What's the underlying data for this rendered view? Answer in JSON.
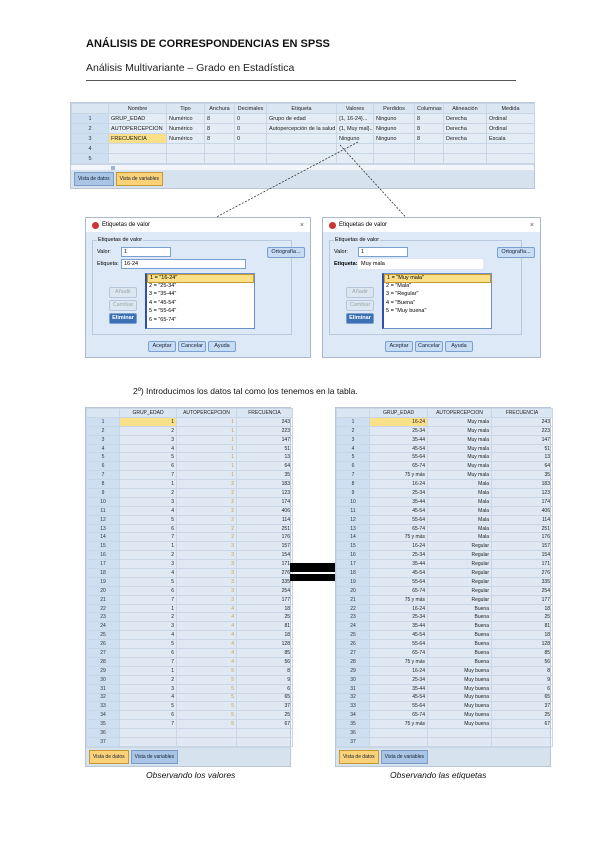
{
  "title": "ANÁLISIS DE CORRESPONDENCIAS EN SPSS",
  "subtitle": "Análisis Multivariante – Grado en Estadística",
  "variable_view": {
    "headers": [
      "",
      "Nombre",
      "Tipo",
      "Anchura",
      "Decimales",
      "Etiqueta",
      "Valores",
      "Perdidos",
      "Columnas",
      "Alineación",
      "Medida"
    ],
    "rows": [
      [
        "1",
        "GRUP_EDAD",
        "Numérico",
        "8",
        "0",
        "Grupo de edad",
        "{1, 16-24}...",
        "Ninguno",
        "8",
        "Derecha",
        "Ordinal"
      ],
      [
        "2",
        "AUTOPERCEPCION",
        "Numérico",
        "8",
        "0",
        "Autopercepción de la salud",
        "{1, Muy mal}...",
        "Ninguno",
        "8",
        "Derecha",
        "Ordinal"
      ],
      [
        "3",
        "FRECUENCIA",
        "Numérico",
        "8",
        "0",
        "",
        "Ninguno",
        "Ninguno",
        "8",
        "Derecha",
        "Escala"
      ],
      [
        "4",
        "",
        "",
        "",
        "",
        "",
        "",
        "",
        "",
        "",
        ""
      ],
      [
        "5",
        "",
        "",
        "",
        "",
        "",
        "",
        "",
        "",
        "",
        ""
      ]
    ],
    "tabs": [
      "Vista de datos",
      "Vista de variables"
    ],
    "active_tab": 1
  },
  "dialog_age": {
    "title": "Etiquetas de valor",
    "group": "Etiquetas de valor",
    "value_label": "Valor:",
    "value": "1",
    "label_label": "Etiqueta:",
    "label": "16-24",
    "spelling": "Ortografía...",
    "list": [
      "1 = \"16-24\"",
      "2 = \"25-34\"",
      "3 = \"35-44\"",
      "4 = \"45-54\"",
      "5 = \"55-64\"",
      "6 = \"65-74\""
    ],
    "add": "Añadir",
    "change": "Cambiar",
    "remove": "Eliminar",
    "ok": "Aceptar",
    "cancel": "Cancelar",
    "help": "Ayuda"
  },
  "dialog_health": {
    "title": "Etiquetas de valor",
    "group": "Etiquetas de valor",
    "value_label": "Valor:",
    "value": "1",
    "label_label": "Etiqueta:",
    "label": "Muy mala",
    "spelling": "Ortografía...",
    "list": [
      "1 = \"Muy mala\"",
      "2 = \"Mala\"",
      "3 = \"Regular\"",
      "4 = \"Buena\"",
      "5 = \"Muy buena\""
    ],
    "add": "Añadir",
    "change": "Cambiar",
    "remove": "Eliminar",
    "ok": "Aceptar",
    "cancel": "Cancelar",
    "help": "Ayuda"
  },
  "step_caption": "2º) Introducimos los datos tal como los tenemos en la tabla.",
  "data_headers": [
    "GRUP_EDAD",
    "AUTOPERCEPCION",
    "FRECUENCIA"
  ],
  "age_labels": [
    "16-24",
    "25-34",
    "35-44",
    "45-54",
    "55-64",
    "65-74",
    "75 y más"
  ],
  "health_labels": [
    "Muy mala",
    "Mala",
    "Regular",
    "Buena",
    "Muy buena"
  ],
  "rows": [
    [
      1,
      1,
      243
    ],
    [
      2,
      1,
      223
    ],
    [
      3,
      1,
      147
    ],
    [
      4,
      1,
      51
    ],
    [
      5,
      1,
      13
    ],
    [
      6,
      1,
      64
    ],
    [
      7,
      1,
      35
    ],
    [
      1,
      2,
      183
    ],
    [
      2,
      2,
      123
    ],
    [
      3,
      2,
      174
    ],
    [
      4,
      2,
      406
    ],
    [
      5,
      2,
      114
    ],
    [
      6,
      2,
      251
    ],
    [
      7,
      2,
      176
    ],
    [
      1,
      3,
      157
    ],
    [
      2,
      3,
      154
    ],
    [
      3,
      3,
      171
    ],
    [
      4,
      3,
      276
    ],
    [
      5,
      3,
      335
    ],
    [
      6,
      3,
      254
    ],
    [
      7,
      3,
      177
    ],
    [
      1,
      4,
      18
    ],
    [
      2,
      4,
      25
    ],
    [
      3,
      4,
      81
    ],
    [
      4,
      4,
      18
    ],
    [
      5,
      4,
      128
    ],
    [
      6,
      4,
      85
    ],
    [
      7,
      4,
      56
    ],
    [
      1,
      5,
      8
    ],
    [
      2,
      5,
      9
    ],
    [
      3,
      5,
      6
    ],
    [
      4,
      5,
      65
    ],
    [
      5,
      5,
      37
    ],
    [
      6,
      5,
      25
    ],
    [
      7,
      5,
      67
    ]
  ],
  "empty_rows": [
    "36",
    "37"
  ],
  "data_tabs": [
    "Vista de datos",
    "Vista de variables"
  ],
  "caption_values": "Observando los valores",
  "caption_labels": "Observando las etiquetas"
}
